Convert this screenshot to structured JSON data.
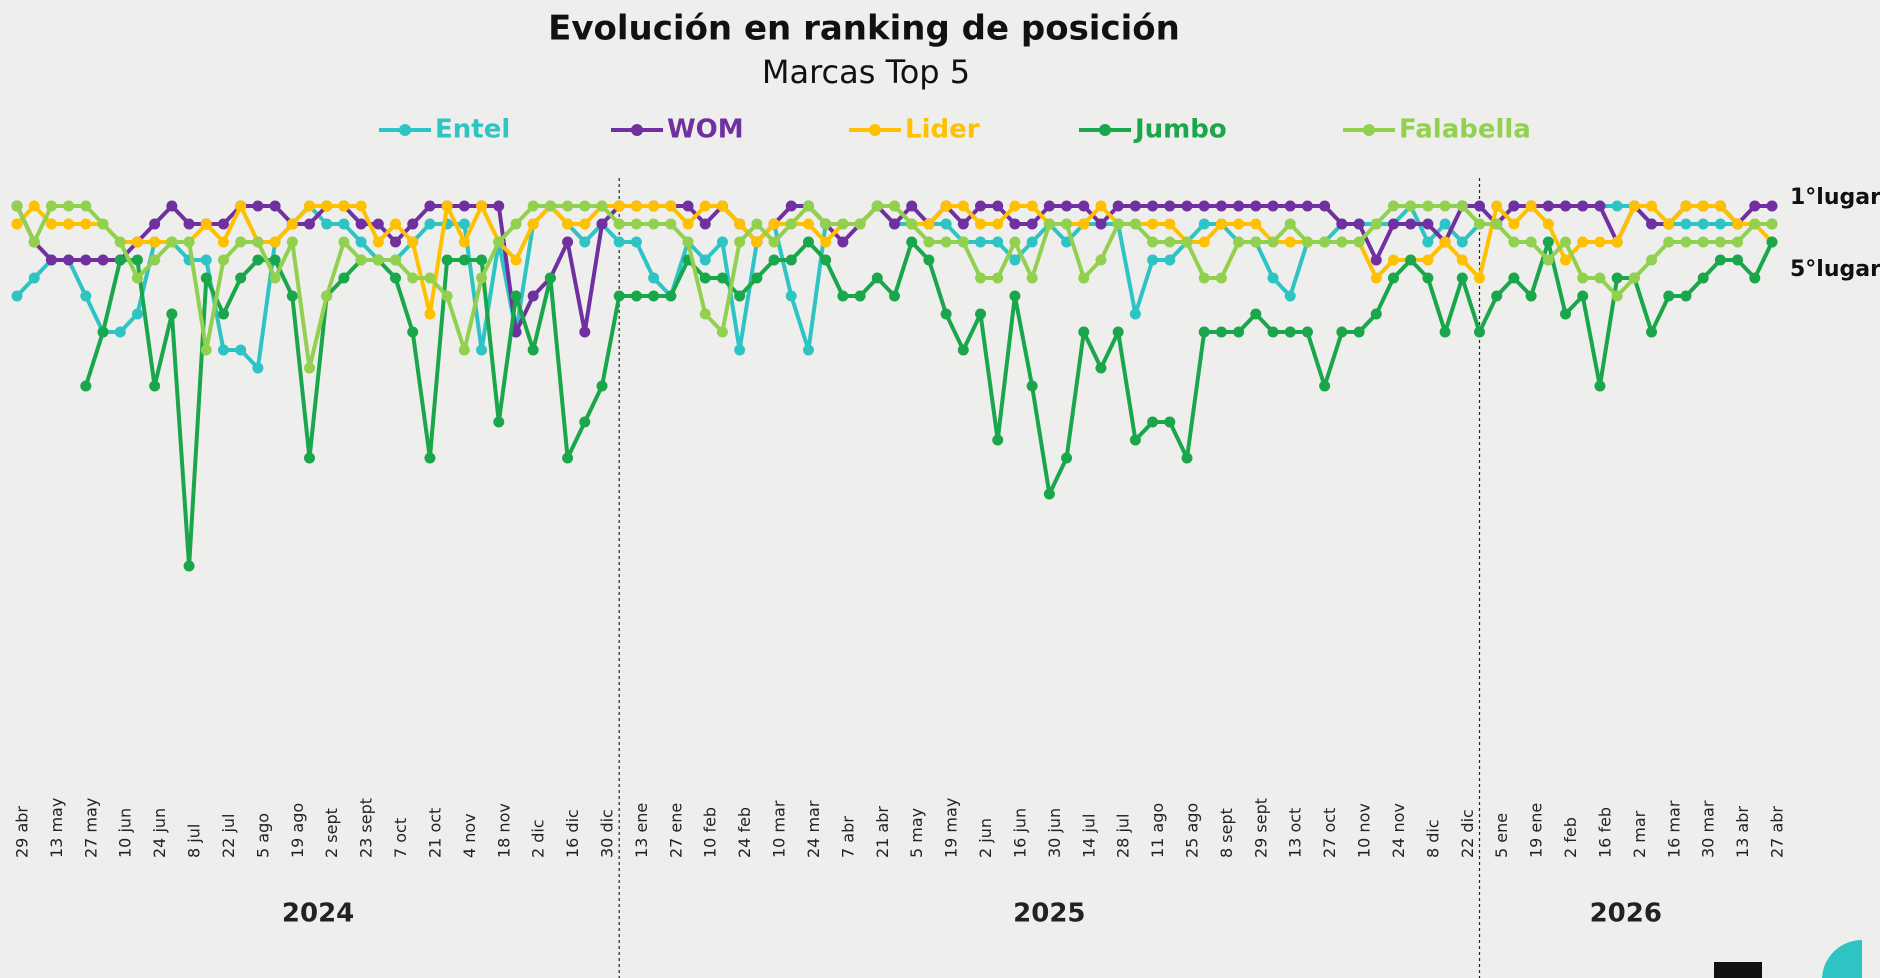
{
  "chart_data": {
    "type": "line",
    "title": "Evolución en ranking de posición",
    "subtitle": "Marcas Top 5",
    "categories": [
      "29 abr",
      null,
      "13 may",
      null,
      "27 may",
      null,
      "10 jun",
      null,
      "24 jun",
      null,
      "8 jul",
      null,
      "22 jul",
      null,
      "5 ago",
      null,
      "19 ago",
      null,
      "2 sept",
      null,
      "23 sept",
      null,
      "7 oct",
      null,
      "21 oct",
      null,
      "4 nov",
      null,
      "18 nov",
      null,
      "2 dic",
      null,
      "16 dic",
      null,
      "30 dic",
      null,
      "13 ene",
      null,
      "27 ene",
      null,
      "10 feb",
      null,
      "24 feb",
      null,
      "10 mar",
      null,
      "24 mar",
      null,
      "7 abr",
      null,
      "21 abr",
      null,
      "5 may",
      null,
      "19 may",
      null,
      "2 jun",
      null,
      "16 jun",
      null,
      "30 jun",
      null,
      "14 jul",
      null,
      "28 jul",
      null,
      "11 ago",
      null,
      "25 ago",
      null,
      "8 sept",
      null,
      "29 sept",
      null,
      "13 oct",
      null,
      "27 oct",
      null,
      "10 nov",
      null,
      "24 nov",
      null,
      "8 dic",
      null,
      "22 dic",
      null,
      "5 ene",
      null,
      "19 ene",
      null,
      "2 feb",
      null,
      "16 feb",
      null,
      "2 mar",
      null,
      "16 mar",
      null,
      "30 mar",
      null,
      "13 abr",
      null,
      "27 abr"
    ],
    "year_labels": [
      "2024",
      "2025",
      "2026"
    ],
    "series": [
      {
        "name": "Entel",
        "color": "#2ec4c4",
        "values": [
          6,
          5,
          4,
          4,
          6,
          8,
          8,
          7,
          3,
          3,
          4,
          4,
          9,
          9,
          10,
          3,
          2,
          1,
          2,
          2,
          3,
          4,
          4,
          3,
          2,
          2,
          2,
          9,
          3,
          8,
          2,
          1,
          2,
          3,
          2,
          3,
          3,
          5,
          6,
          3,
          4,
          3,
          9,
          3,
          2,
          6,
          9,
          2,
          2,
          2,
          1,
          2,
          2,
          2,
          2,
          3,
          3,
          3,
          4,
          3,
          2,
          3,
          2,
          2,
          2,
          7,
          4,
          4,
          3,
          2,
          2,
          3,
          3,
          5,
          6,
          3,
          3,
          2,
          2,
          2,
          2,
          1,
          3,
          2,
          3,
          2,
          2,
          1,
          1,
          1,
          1,
          1,
          1,
          1,
          1,
          2,
          2,
          2,
          2,
          2,
          2,
          2,
          2
        ]
      },
      {
        "name": "WOM",
        "color": "#7030a0",
        "values": [
          1,
          3,
          4,
          4,
          4,
          4,
          4,
          3,
          2,
          1,
          2,
          2,
          2,
          1,
          1,
          1,
          2,
          2,
          1,
          1,
          2,
          2,
          3,
          2,
          1,
          1,
          1,
          1,
          1,
          8,
          6,
          5,
          3,
          8,
          2,
          1,
          1,
          1,
          1,
          1,
          2,
          1,
          2,
          3,
          2,
          1,
          1,
          2,
          3,
          2,
          1,
          2,
          1,
          2,
          1,
          2,
          1,
          1,
          2,
          2,
          1,
          1,
          1,
          2,
          1,
          1,
          1,
          1,
          1,
          1,
          1,
          1,
          1,
          1,
          1,
          1,
          1,
          2,
          2,
          4,
          2,
          2,
          2,
          3,
          1,
          1,
          2,
          1,
          1,
          1,
          1,
          1,
          1,
          3,
          1,
          2,
          2,
          1,
          1,
          1,
          2,
          1,
          1
        ]
      },
      {
        "name": "Lider",
        "color": "#ffc000",
        "values": [
          2,
          1,
          2,
          2,
          2,
          2,
          3,
          3,
          3,
          3,
          3,
          2,
          3,
          1,
          3,
          3,
          2,
          1,
          1,
          1,
          1,
          3,
          2,
          3,
          7,
          1,
          3,
          1,
          3,
          4,
          2,
          1,
          2,
          2,
          1,
          1,
          1,
          1,
          1,
          2,
          1,
          1,
          2,
          3,
          2,
          2,
          2,
          3,
          2,
          2,
          1,
          1,
          2,
          2,
          1,
          1,
          2,
          2,
          1,
          1,
          2,
          2,
          2,
          1,
          2,
          2,
          2,
          2,
          3,
          3,
          2,
          2,
          2,
          3,
          3,
          3,
          3,
          3,
          3,
          5,
          4,
          4,
          4,
          3,
          4,
          5,
          1,
          2,
          1,
          2,
          4,
          3,
          3,
          3,
          1,
          1,
          2,
          1,
          1,
          1,
          2,
          2,
          3
        ]
      },
      {
        "name": "Jumbo",
        "color": "#1aa64a",
        "values": [
          null,
          null,
          null,
          null,
          11,
          8,
          4,
          4,
          11,
          7,
          21,
          5,
          7,
          5,
          4,
          4,
          6,
          15,
          6,
          5,
          4,
          4,
          5,
          8,
          15,
          4,
          4,
          4,
          13,
          6,
          9,
          5,
          15,
          13,
          11,
          6,
          6,
          6,
          6,
          4,
          5,
          5,
          6,
          5,
          4,
          4,
          3,
          4,
          6,
          6,
          5,
          6,
          3,
          4,
          7,
          9,
          7,
          14,
          6,
          11,
          17,
          15,
          8,
          10,
          8,
          14,
          13,
          13,
          15,
          8,
          8,
          8,
          7,
          8,
          8,
          8,
          11,
          8,
          8,
          7,
          5,
          4,
          5,
          8,
          5,
          8,
          6,
          5,
          6,
          3,
          7,
          6,
          11,
          5,
          5,
          8,
          6,
          6,
          5,
          4,
          4,
          5,
          3
        ]
      },
      {
        "name": "Falabella",
        "color": "#92d050",
        "values": [
          1,
          3,
          1,
          1,
          1,
          2,
          3,
          5,
          4,
          3,
          3,
          9,
          4,
          3,
          3,
          5,
          3,
          10,
          6,
          3,
          4,
          4,
          4,
          5,
          5,
          6,
          9,
          5,
          3,
          2,
          1,
          1,
          1,
          1,
          1,
          2,
          2,
          2,
          2,
          3,
          7,
          8,
          3,
          2,
          3,
          2,
          1,
          2,
          2,
          2,
          1,
          1,
          2,
          3,
          3,
          3,
          5,
          5,
          3,
          5,
          2,
          2,
          5,
          4,
          2,
          2,
          3,
          3,
          3,
          5,
          5,
          3,
          3,
          3,
          2,
          3,
          3,
          3,
          3,
          2,
          1,
          1,
          1,
          1,
          1,
          2,
          2,
          3,
          3,
          4,
          3,
          5,
          5,
          6,
          5,
          4,
          3,
          3,
          3,
          3,
          3,
          2,
          2
        ]
      }
    ],
    "ylim": [
      33,
      1
    ],
    "yticks": [
      {
        "value": 1,
        "label": "1°lugar"
      },
      {
        "value": 5,
        "label": "5°lugar"
      }
    ],
    "grid": false
  }
}
